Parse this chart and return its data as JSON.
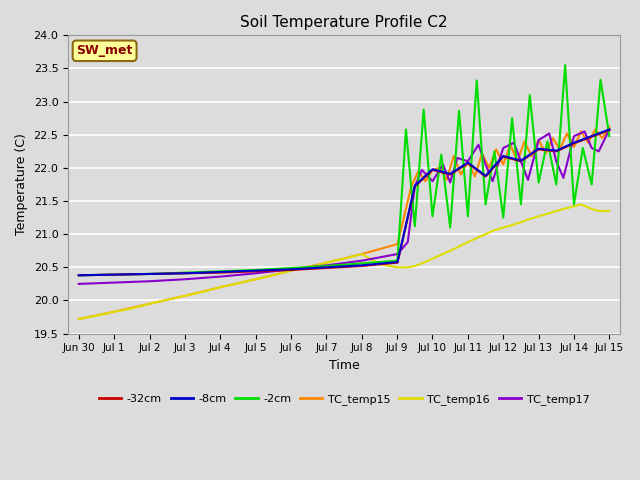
{
  "title": "Soil Temperature Profile C2",
  "xlabel": "Time",
  "ylabel": "Temperature (C)",
  "ylim": [
    19.5,
    24.0
  ],
  "xlim": [
    -0.3,
    15.3
  ],
  "annotation": "SW_met",
  "bg_color": "#dcdcdc",
  "grid_color": "#ffffff",
  "legend_colors": {
    "-32cm": "#cc0000",
    "-8cm": "#0000cc",
    "-2cm": "#00dd00",
    "TC_temp15": "#ff8800",
    "TC_temp16": "#dddd00",
    "TC_temp17": "#8800cc"
  },
  "neg32cm_x": [
    0,
    1,
    2,
    3,
    4,
    5,
    6,
    7,
    8,
    9,
    9.01,
    9.5,
    10,
    10.5,
    11,
    11.5,
    12,
    12.5,
    13,
    13.5,
    14,
    14.5,
    15
  ],
  "neg32cm_y": [
    20.38,
    20.39,
    20.4,
    20.41,
    20.42,
    20.44,
    20.46,
    20.49,
    20.52,
    20.57,
    20.57,
    21.72,
    21.97,
    21.9,
    22.07,
    21.87,
    22.17,
    22.1,
    22.28,
    22.25,
    22.37,
    22.47,
    22.57
  ],
  "neg8cm_x": [
    0,
    1,
    2,
    3,
    4,
    5,
    6,
    7,
    8,
    9,
    9.01,
    9.5,
    10,
    10.5,
    11,
    11.5,
    12,
    12.5,
    13,
    13.5,
    14,
    14.5,
    15
  ],
  "neg8cm_y": [
    20.38,
    20.39,
    20.4,
    20.41,
    20.43,
    20.45,
    20.47,
    20.5,
    20.53,
    20.58,
    20.58,
    21.73,
    21.98,
    21.91,
    22.08,
    21.88,
    22.18,
    22.11,
    22.29,
    22.26,
    22.38,
    22.48,
    22.58
  ],
  "neg2cm_x": [
    0,
    1,
    2,
    3,
    4,
    5,
    6,
    7,
    8,
    9,
    9.01,
    9.25,
    9.5,
    9.75,
    10.0,
    10.25,
    10.5,
    10.75,
    11.0,
    11.25,
    11.5,
    11.75,
    12.0,
    12.25,
    12.5,
    12.75,
    13.0,
    13.25,
    13.5,
    13.75,
    14.0,
    14.25,
    14.5,
    14.75,
    15.0
  ],
  "neg2cm_y": [
    20.38,
    20.39,
    20.4,
    20.42,
    20.44,
    20.46,
    20.49,
    20.52,
    20.56,
    20.6,
    20.6,
    22.58,
    21.12,
    22.88,
    21.27,
    22.2,
    21.1,
    22.86,
    21.27,
    23.32,
    21.45,
    22.25,
    21.25,
    22.75,
    21.45,
    23.1,
    21.78,
    22.4,
    21.75,
    23.55,
    21.45,
    22.3,
    21.75,
    23.33,
    22.48
  ],
  "TC15_x": [
    0,
    1,
    2,
    3,
    4,
    5,
    6,
    7,
    8,
    9,
    9.01,
    9.4,
    9.6,
    9.8,
    10.0,
    10.2,
    10.4,
    10.6,
    10.8,
    11.0,
    11.2,
    11.4,
    11.6,
    11.8,
    12.0,
    12.2,
    12.4,
    12.6,
    12.8,
    13.0,
    13.2,
    13.4,
    13.6,
    13.8,
    14.0,
    14.2,
    14.4,
    14.6,
    14.8,
    15.0
  ],
  "TC15_y": [
    19.72,
    19.83,
    19.95,
    20.07,
    20.2,
    20.32,
    20.45,
    20.57,
    20.7,
    20.85,
    20.85,
    21.72,
    21.95,
    21.8,
    21.97,
    22.0,
    21.82,
    22.18,
    21.9,
    22.1,
    21.87,
    22.22,
    22.0,
    22.28,
    22.05,
    22.35,
    22.1,
    22.4,
    22.18,
    22.42,
    22.22,
    22.45,
    22.28,
    22.52,
    22.32,
    22.55,
    22.38,
    22.58,
    22.45,
    22.62
  ],
  "TC16_x": [
    0,
    0.5,
    1,
    1.5,
    2,
    2.5,
    3,
    3.5,
    4,
    4.5,
    5,
    5.5,
    6,
    6.5,
    7,
    7.5,
    8,
    8.5,
    9,
    9.3,
    9.5,
    9.7,
    10,
    10.2,
    10.5,
    10.7,
    11,
    11.2,
    11.5,
    11.7,
    12,
    12.2,
    12.5,
    12.7,
    13,
    13.2,
    13.5,
    13.7,
    14,
    14.2,
    14.5,
    14.7,
    15
  ],
  "TC16_y": [
    19.72,
    19.77,
    19.83,
    19.88,
    19.95,
    20.01,
    20.07,
    20.13,
    20.2,
    20.26,
    20.32,
    20.38,
    20.45,
    20.5,
    20.57,
    20.63,
    20.7,
    20.55,
    20.5,
    20.5,
    20.52,
    20.56,
    20.63,
    20.68,
    20.75,
    20.8,
    20.88,
    20.93,
    21.0,
    21.05,
    21.1,
    21.13,
    21.18,
    21.22,
    21.27,
    21.3,
    21.35,
    21.38,
    21.42,
    21.45,
    21.38,
    21.35,
    21.35
  ],
  "TC17_x": [
    0,
    1,
    2,
    3,
    4,
    5,
    6,
    7,
    8,
    9,
    9.01,
    9.3,
    9.5,
    9.7,
    10.0,
    10.3,
    10.5,
    10.7,
    11.0,
    11.3,
    11.5,
    11.7,
    12.0,
    12.3,
    12.5,
    12.7,
    13.0,
    13.3,
    13.5,
    13.7,
    14.0,
    14.3,
    14.5,
    14.7,
    15.0
  ],
  "TC17_y": [
    20.25,
    20.27,
    20.29,
    20.32,
    20.36,
    20.41,
    20.47,
    20.53,
    20.6,
    20.7,
    20.7,
    20.88,
    21.72,
    21.97,
    21.8,
    22.05,
    21.78,
    22.15,
    22.1,
    22.35,
    22.05,
    21.8,
    22.3,
    22.38,
    22.1,
    21.82,
    22.42,
    22.52,
    22.1,
    21.85,
    22.48,
    22.55,
    22.3,
    22.25,
    22.58
  ],
  "xtick_positions": [
    0,
    1,
    2,
    3,
    4,
    5,
    6,
    7,
    8,
    9,
    10,
    11,
    12,
    13,
    14,
    15
  ],
  "xtick_labels": [
    "Jun 30",
    "Jul 1",
    "Jul 2",
    "Jul 3",
    "Jul 4",
    "Jul 5",
    "Jul 6",
    "Jul 7",
    "Jul 8",
    "Jul 9",
    "Jul 10",
    "Jul 11",
    "Jul 12",
    "Jul 13",
    "Jul 14",
    "Jul 15"
  ],
  "ytick_positions": [
    19.5,
    20.0,
    20.5,
    21.0,
    21.5,
    22.0,
    22.5,
    23.0,
    23.5,
    24.0
  ]
}
